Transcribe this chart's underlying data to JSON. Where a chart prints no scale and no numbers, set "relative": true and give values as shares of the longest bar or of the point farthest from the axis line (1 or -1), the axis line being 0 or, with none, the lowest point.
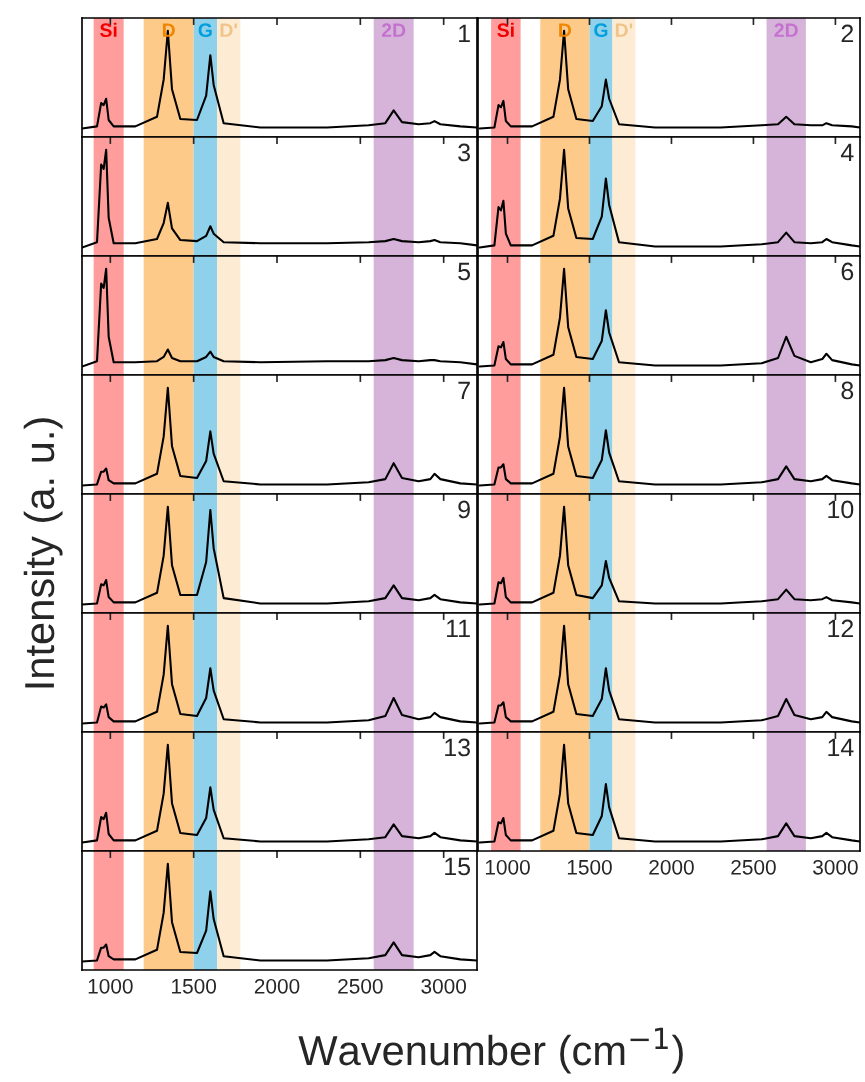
{
  "chart_data": [
    {
      "type": "line",
      "relative": true,
      "title": "1",
      "xlim": [
        830,
        3200
      ],
      "xticks": [
        1000,
        1500,
        2000,
        2500,
        3000
      ],
      "tick_labels": false,
      "x": [
        830,
        920,
        945,
        960,
        975,
        990,
        1020,
        1150,
        1280,
        1320,
        1345,
        1370,
        1420,
        1520,
        1575,
        1600,
        1620,
        1680,
        1900,
        2300,
        2550,
        2650,
        2700,
        2750,
        2850,
        2920,
        2945,
        2980,
        3100,
        3200
      ],
      "series": [
        {
          "color": "#000000",
          "values": [
            0.08,
            0.1,
            0.32,
            0.3,
            0.36,
            0.16,
            0.1,
            0.1,
            0.19,
            0.54,
            1,
            0.45,
            0.17,
            0.16,
            0.39,
            0.77,
            0.49,
            0.13,
            0.09,
            0.09,
            0.11,
            0.13,
            0.25,
            0.14,
            0.12,
            0.13,
            0.15,
            0.12,
            0.1,
            0.09
          ]
        }
      ],
      "bands": [
        {
          "axis": "x",
          "from": 900,
          "to": 1080,
          "label": "Si",
          "color": "#ff9d9d"
        },
        {
          "axis": "x",
          "from": 1200,
          "to": 1500,
          "label": "D",
          "color": "#fdca8a"
        },
        {
          "axis": "x",
          "from": 1500,
          "to": 1640,
          "label": "G",
          "color": "#8fd0ea"
        },
        {
          "axis": "x",
          "from": 1640,
          "to": 1780,
          "label": "D'",
          "color": "#fdebd3"
        },
        {
          "axis": "x",
          "from": 2580,
          "to": 2820,
          "label": "2D",
          "color": "#d6b4da"
        }
      ]
    },
    {
      "type": "line",
      "relative": true,
      "title": "2",
      "xlim": [
        820,
        3150
      ],
      "xticks": [
        1000,
        1500,
        2000,
        2500,
        3000
      ],
      "tick_labels": false,
      "x": [
        830,
        920,
        945,
        960,
        975,
        990,
        1020,
        1150,
        1280,
        1320,
        1345,
        1370,
        1420,
        1520,
        1575,
        1600,
        1620,
        1680,
        1900,
        2300,
        2550,
        2650,
        2700,
        2750,
        2850,
        2920,
        2945,
        2980,
        3100,
        3150
      ],
      "series": [
        {
          "color": "#000000",
          "values": [
            0.08,
            0.09,
            0.3,
            0.28,
            0.34,
            0.15,
            0.1,
            0.1,
            0.19,
            0.54,
            1,
            0.45,
            0.17,
            0.15,
            0.29,
            0.54,
            0.36,
            0.12,
            0.09,
            0.09,
            0.11,
            0.12,
            0.19,
            0.12,
            0.11,
            0.11,
            0.13,
            0.11,
            0.1,
            0.09
          ]
        }
      ],
      "bands": [
        {
          "axis": "x",
          "from": 900,
          "to": 1080,
          "label": "Si",
          "color": "#ff9d9d"
        },
        {
          "axis": "x",
          "from": 1200,
          "to": 1500,
          "label": "D",
          "color": "#fdca8a"
        },
        {
          "axis": "x",
          "from": 1500,
          "to": 1640,
          "label": "G",
          "color": "#8fd0ea"
        },
        {
          "axis": "x",
          "from": 1640,
          "to": 1780,
          "label": "D'",
          "color": "#fdebd3"
        },
        {
          "axis": "x",
          "from": 2580,
          "to": 2820,
          "label": "2D",
          "color": "#d6b4da"
        }
      ]
    },
    {
      "type": "line",
      "relative": true,
      "title": "3",
      "xlim": [
        830,
        3200
      ],
      "xticks": [
        1000,
        1500,
        2000,
        2500,
        3000
      ],
      "tick_labels": false,
      "x": [
        830,
        920,
        945,
        960,
        975,
        990,
        1020,
        1150,
        1280,
        1320,
        1345,
        1370,
        1420,
        1520,
        1575,
        1600,
        1620,
        1680,
        1900,
        2300,
        2550,
        2650,
        2700,
        2750,
        2850,
        2920,
        2945,
        2980,
        3100,
        3200
      ],
      "series": [
        {
          "color": "#000000",
          "values": [
            0.08,
            0.13,
            0.86,
            0.82,
            1,
            0.36,
            0.12,
            0.12,
            0.16,
            0.31,
            0.5,
            0.26,
            0.15,
            0.14,
            0.19,
            0.28,
            0.21,
            0.13,
            0.12,
            0.12,
            0.13,
            0.14,
            0.16,
            0.14,
            0.13,
            0.14,
            0.15,
            0.13,
            0.12,
            0.1
          ]
        }
      ],
      "bands": [
        {
          "axis": "x",
          "from": 900,
          "to": 1080,
          "color": "#ff9d9d"
        },
        {
          "axis": "x",
          "from": 1200,
          "to": 1500,
          "color": "#fdca8a"
        },
        {
          "axis": "x",
          "from": 1500,
          "to": 1640,
          "color": "#8fd0ea"
        },
        {
          "axis": "x",
          "from": 1640,
          "to": 1780,
          "color": "#fdebd3"
        },
        {
          "axis": "x",
          "from": 2580,
          "to": 2820,
          "color": "#d6b4da"
        }
      ]
    },
    {
      "type": "line",
      "relative": true,
      "title": "4",
      "xlim": [
        820,
        3150
      ],
      "xticks": [
        1000,
        1500,
        2000,
        2500,
        3000
      ],
      "tick_labels": false,
      "x": [
        830,
        920,
        945,
        960,
        975,
        990,
        1020,
        1150,
        1280,
        1320,
        1345,
        1370,
        1420,
        1520,
        1575,
        1600,
        1620,
        1680,
        1900,
        2300,
        2550,
        2650,
        2700,
        2750,
        2850,
        2920,
        2945,
        2980,
        3100,
        3150
      ],
      "series": [
        {
          "color": "#000000",
          "values": [
            0.08,
            0.1,
            0.46,
            0.43,
            0.52,
            0.21,
            0.1,
            0.1,
            0.19,
            0.54,
            1,
            0.45,
            0.17,
            0.16,
            0.37,
            0.73,
            0.48,
            0.13,
            0.09,
            0.09,
            0.11,
            0.13,
            0.22,
            0.13,
            0.12,
            0.13,
            0.16,
            0.13,
            0.1,
            0.09
          ]
        }
      ],
      "bands": [
        {
          "axis": "x",
          "from": 900,
          "to": 1080,
          "color": "#ff9d9d"
        },
        {
          "axis": "x",
          "from": 1200,
          "to": 1500,
          "color": "#fdca8a"
        },
        {
          "axis": "x",
          "from": 1500,
          "to": 1640,
          "color": "#8fd0ea"
        },
        {
          "axis": "x",
          "from": 1640,
          "to": 1780,
          "color": "#fdebd3"
        },
        {
          "axis": "x",
          "from": 2580,
          "to": 2820,
          "color": "#d6b4da"
        }
      ]
    },
    {
      "type": "line",
      "relative": true,
      "title": "5",
      "xlim": [
        830,
        3200
      ],
      "xticks": [
        1000,
        1500,
        2000,
        2500,
        3000
      ],
      "tick_labels": false,
      "x": [
        830,
        920,
        945,
        960,
        975,
        990,
        1020,
        1150,
        1280,
        1320,
        1345,
        1370,
        1420,
        1520,
        1575,
        1600,
        1620,
        1680,
        1900,
        2300,
        2550,
        2650,
        2700,
        2750,
        2850,
        2920,
        2945,
        2980,
        3100,
        3200
      ],
      "series": [
        {
          "color": "#000000",
          "values": [
            0.08,
            0.13,
            0.86,
            0.82,
            1,
            0.36,
            0.12,
            0.12,
            0.13,
            0.17,
            0.24,
            0.16,
            0.13,
            0.13,
            0.17,
            0.22,
            0.17,
            0.13,
            0.12,
            0.13,
            0.13,
            0.14,
            0.16,
            0.14,
            0.13,
            0.14,
            0.14,
            0.13,
            0.12,
            0.1
          ]
        }
      ],
      "bands": [
        {
          "axis": "x",
          "from": 900,
          "to": 1080,
          "color": "#ff9d9d"
        },
        {
          "axis": "x",
          "from": 1200,
          "to": 1500,
          "color": "#fdca8a"
        },
        {
          "axis": "x",
          "from": 1500,
          "to": 1640,
          "color": "#8fd0ea"
        },
        {
          "axis": "x",
          "from": 1640,
          "to": 1780,
          "color": "#fdebd3"
        },
        {
          "axis": "x",
          "from": 2580,
          "to": 2820,
          "color": "#d6b4da"
        }
      ]
    },
    {
      "type": "line",
      "relative": true,
      "title": "6",
      "xlim": [
        820,
        3150
      ],
      "xticks": [
        1000,
        1500,
        2000,
        2500,
        3000
      ],
      "tick_labels": false,
      "x": [
        830,
        920,
        945,
        960,
        975,
        990,
        1020,
        1150,
        1280,
        1320,
        1345,
        1370,
        1420,
        1520,
        1575,
        1600,
        1620,
        1680,
        1900,
        2300,
        2550,
        2650,
        2700,
        2750,
        2850,
        2920,
        2945,
        2980,
        3100,
        3150
      ],
      "series": [
        {
          "color": "#000000",
          "values": [
            0.08,
            0.09,
            0.27,
            0.26,
            0.31,
            0.15,
            0.1,
            0.1,
            0.19,
            0.54,
            1,
            0.45,
            0.17,
            0.15,
            0.32,
            0.61,
            0.4,
            0.12,
            0.09,
            0.09,
            0.11,
            0.16,
            0.36,
            0.18,
            0.12,
            0.15,
            0.2,
            0.14,
            0.1,
            0.09
          ]
        }
      ],
      "bands": [
        {
          "axis": "x",
          "from": 900,
          "to": 1080,
          "color": "#ff9d9d"
        },
        {
          "axis": "x",
          "from": 1200,
          "to": 1500,
          "color": "#fdca8a"
        },
        {
          "axis": "x",
          "from": 1500,
          "to": 1640,
          "color": "#8fd0ea"
        },
        {
          "axis": "x",
          "from": 1640,
          "to": 1780,
          "color": "#fdebd3"
        },
        {
          "axis": "x",
          "from": 2580,
          "to": 2820,
          "color": "#d6b4da"
        }
      ]
    },
    {
      "type": "line",
      "relative": true,
      "title": "7",
      "xlim": [
        830,
        3200
      ],
      "xticks": [
        1000,
        1500,
        2000,
        2500,
        3000
      ],
      "tick_labels": false,
      "x": [
        830,
        920,
        945,
        960,
        975,
        990,
        1020,
        1150,
        1280,
        1320,
        1345,
        1370,
        1420,
        1520,
        1575,
        1600,
        1620,
        1680,
        1900,
        2300,
        2550,
        2650,
        2700,
        2750,
        2850,
        2920,
        2945,
        2980,
        3100,
        3200
      ],
      "series": [
        {
          "color": "#000000",
          "values": [
            0.08,
            0.09,
            0.21,
            0.21,
            0.24,
            0.13,
            0.1,
            0.1,
            0.19,
            0.54,
            1,
            0.45,
            0.17,
            0.15,
            0.31,
            0.59,
            0.38,
            0.12,
            0.09,
            0.09,
            0.11,
            0.14,
            0.29,
            0.15,
            0.12,
            0.14,
            0.19,
            0.14,
            0.1,
            0.09
          ]
        }
      ],
      "bands": [
        {
          "axis": "x",
          "from": 900,
          "to": 1080,
          "color": "#ff9d9d"
        },
        {
          "axis": "x",
          "from": 1200,
          "to": 1500,
          "color": "#fdca8a"
        },
        {
          "axis": "x",
          "from": 1500,
          "to": 1640,
          "color": "#8fd0ea"
        },
        {
          "axis": "x",
          "from": 1640,
          "to": 1780,
          "color": "#fdebd3"
        },
        {
          "axis": "x",
          "from": 2580,
          "to": 2820,
          "color": "#d6b4da"
        }
      ]
    },
    {
      "type": "line",
      "relative": true,
      "title": "8",
      "xlim": [
        820,
        3150
      ],
      "xticks": [
        1000,
        1500,
        2000,
        2500,
        3000
      ],
      "tick_labels": false,
      "x": [
        830,
        920,
        945,
        960,
        975,
        990,
        1020,
        1150,
        1280,
        1320,
        1345,
        1370,
        1420,
        1520,
        1575,
        1600,
        1620,
        1680,
        1900,
        2300,
        2550,
        2650,
        2700,
        2750,
        2850,
        2920,
        2945,
        2980,
        3100,
        3150
      ],
      "series": [
        {
          "color": "#000000",
          "values": [
            0.08,
            0.09,
            0.25,
            0.25,
            0.28,
            0.14,
            0.1,
            0.1,
            0.19,
            0.54,
            1,
            0.45,
            0.17,
            0.15,
            0.32,
            0.6,
            0.39,
            0.12,
            0.09,
            0.09,
            0.11,
            0.14,
            0.26,
            0.14,
            0.12,
            0.14,
            0.17,
            0.13,
            0.1,
            0.09
          ]
        }
      ],
      "bands": [
        {
          "axis": "x",
          "from": 900,
          "to": 1080,
          "color": "#ff9d9d"
        },
        {
          "axis": "x",
          "from": 1200,
          "to": 1500,
          "color": "#fdca8a"
        },
        {
          "axis": "x",
          "from": 1500,
          "to": 1640,
          "color": "#8fd0ea"
        },
        {
          "axis": "x",
          "from": 1640,
          "to": 1780,
          "color": "#fdebd3"
        },
        {
          "axis": "x",
          "from": 2580,
          "to": 2820,
          "color": "#d6b4da"
        }
      ]
    },
    {
      "type": "line",
      "relative": true,
      "title": "9",
      "ylabel": "Intensity (a. u.)",
      "xlim": [
        830,
        3200
      ],
      "xticks": [
        1000,
        1500,
        2000,
        2500,
        3000
      ],
      "tick_labels": false,
      "x": [
        830,
        920,
        945,
        960,
        975,
        990,
        1020,
        1150,
        1280,
        1320,
        1345,
        1370,
        1420,
        1520,
        1575,
        1600,
        1620,
        1680,
        1900,
        2300,
        2550,
        2650,
        2700,
        2750,
        2850,
        2920,
        2945,
        2980,
        3100,
        3200
      ],
      "series": [
        {
          "color": "#000000",
          "values": [
            0.08,
            0.09,
            0.27,
            0.26,
            0.31,
            0.15,
            0.1,
            0.1,
            0.19,
            0.54,
            1,
            0.45,
            0.17,
            0.17,
            0.48,
            0.97,
            0.61,
            0.14,
            0.09,
            0.09,
            0.11,
            0.14,
            0.26,
            0.14,
            0.12,
            0.14,
            0.17,
            0.13,
            0.1,
            0.09
          ]
        }
      ],
      "bands": [
        {
          "axis": "x",
          "from": 900,
          "to": 1080,
          "color": "#ff9d9d"
        },
        {
          "axis": "x",
          "from": 1200,
          "to": 1500,
          "color": "#fdca8a"
        },
        {
          "axis": "x",
          "from": 1500,
          "to": 1640,
          "color": "#8fd0ea"
        },
        {
          "axis": "x",
          "from": 1640,
          "to": 1780,
          "color": "#fdebd3"
        },
        {
          "axis": "x",
          "from": 2580,
          "to": 2820,
          "color": "#d6b4da"
        }
      ]
    },
    {
      "type": "line",
      "relative": true,
      "title": "10",
      "xlim": [
        820,
        3150
      ],
      "xticks": [
        1000,
        1500,
        2000,
        2500,
        3000
      ],
      "tick_labels": false,
      "x": [
        830,
        920,
        945,
        960,
        975,
        990,
        1020,
        1150,
        1280,
        1320,
        1345,
        1370,
        1420,
        1520,
        1575,
        1600,
        1620,
        1680,
        1900,
        2300,
        2550,
        2650,
        2700,
        2750,
        2850,
        2920,
        2945,
        2980,
        3100,
        3150
      ],
      "series": [
        {
          "color": "#000000",
          "values": [
            0.08,
            0.09,
            0.29,
            0.28,
            0.33,
            0.15,
            0.1,
            0.1,
            0.19,
            0.54,
            1,
            0.45,
            0.17,
            0.14,
            0.26,
            0.49,
            0.33,
            0.11,
            0.09,
            0.09,
            0.11,
            0.13,
            0.22,
            0.13,
            0.12,
            0.13,
            0.15,
            0.12,
            0.1,
            0.09
          ]
        }
      ],
      "bands": [
        {
          "axis": "x",
          "from": 900,
          "to": 1080,
          "color": "#ff9d9d"
        },
        {
          "axis": "x",
          "from": 1200,
          "to": 1500,
          "color": "#fdca8a"
        },
        {
          "axis": "x",
          "from": 1500,
          "to": 1640,
          "color": "#8fd0ea"
        },
        {
          "axis": "x",
          "from": 1640,
          "to": 1780,
          "color": "#fdebd3"
        },
        {
          "axis": "x",
          "from": 2580,
          "to": 2820,
          "color": "#d6b4da"
        }
      ]
    },
    {
      "type": "line",
      "relative": true,
      "title": "11",
      "xlim": [
        830,
        3200
      ],
      "xticks": [
        1000,
        1500,
        2000,
        2500,
        3000
      ],
      "tick_labels": false,
      "x": [
        830,
        920,
        945,
        960,
        975,
        990,
        1020,
        1150,
        1280,
        1320,
        1345,
        1370,
        1420,
        1520,
        1575,
        1600,
        1620,
        1680,
        1900,
        2300,
        2550,
        2650,
        2700,
        2750,
        2850,
        2920,
        2945,
        2980,
        3100,
        3200
      ],
      "series": [
        {
          "color": "#000000",
          "values": [
            0.08,
            0.09,
            0.24,
            0.23,
            0.26,
            0.14,
            0.1,
            0.1,
            0.19,
            0.54,
            1,
            0.45,
            0.17,
            0.15,
            0.32,
            0.6,
            0.39,
            0.12,
            0.09,
            0.09,
            0.11,
            0.15,
            0.32,
            0.16,
            0.12,
            0.14,
            0.18,
            0.14,
            0.1,
            0.09
          ]
        }
      ],
      "bands": [
        {
          "axis": "x",
          "from": 900,
          "to": 1080,
          "color": "#ff9d9d"
        },
        {
          "axis": "x",
          "from": 1200,
          "to": 1500,
          "color": "#fdca8a"
        },
        {
          "axis": "x",
          "from": 1500,
          "to": 1640,
          "color": "#8fd0ea"
        },
        {
          "axis": "x",
          "from": 1640,
          "to": 1780,
          "color": "#fdebd3"
        },
        {
          "axis": "x",
          "from": 2580,
          "to": 2820,
          "color": "#d6b4da"
        }
      ]
    },
    {
      "type": "line",
      "relative": true,
      "title": "12",
      "xlim": [
        820,
        3150
      ],
      "xticks": [
        1000,
        1500,
        2000,
        2500,
        3000
      ],
      "tick_labels": false,
      "x": [
        830,
        920,
        945,
        960,
        975,
        990,
        1020,
        1150,
        1280,
        1320,
        1345,
        1370,
        1420,
        1520,
        1575,
        1600,
        1620,
        1680,
        1900,
        2300,
        2550,
        2650,
        2700,
        2750,
        2850,
        2920,
        2945,
        2980,
        3100,
        3150
      ],
      "series": [
        {
          "color": "#000000",
          "values": [
            0.08,
            0.09,
            0.25,
            0.25,
            0.28,
            0.14,
            0.1,
            0.1,
            0.19,
            0.54,
            1,
            0.45,
            0.17,
            0.15,
            0.31,
            0.6,
            0.39,
            0.12,
            0.09,
            0.09,
            0.11,
            0.15,
            0.31,
            0.16,
            0.12,
            0.14,
            0.19,
            0.14,
            0.1,
            0.09
          ]
        }
      ],
      "bands": [
        {
          "axis": "x",
          "from": 900,
          "to": 1080,
          "color": "#ff9d9d"
        },
        {
          "axis": "x",
          "from": 1200,
          "to": 1500,
          "color": "#fdca8a"
        },
        {
          "axis": "x",
          "from": 1500,
          "to": 1640,
          "color": "#8fd0ea"
        },
        {
          "axis": "x",
          "from": 1640,
          "to": 1780,
          "color": "#fdebd3"
        },
        {
          "axis": "x",
          "from": 2580,
          "to": 2820,
          "color": "#d6b4da"
        }
      ]
    },
    {
      "type": "line",
      "relative": true,
      "title": "13",
      "xlim": [
        830,
        3200
      ],
      "xticks": [
        1000,
        1500,
        2000,
        2500,
        3000
      ],
      "tick_labels": false,
      "x": [
        830,
        920,
        945,
        960,
        975,
        990,
        1020,
        1150,
        1280,
        1320,
        1345,
        1370,
        1420,
        1520,
        1575,
        1600,
        1620,
        1680,
        1900,
        2300,
        2550,
        2650,
        2700,
        2750,
        2850,
        2920,
        2945,
        2980,
        3100,
        3200
      ],
      "series": [
        {
          "color": "#000000",
          "values": [
            0.08,
            0.1,
            0.32,
            0.3,
            0.36,
            0.16,
            0.1,
            0.1,
            0.19,
            0.54,
            1,
            0.45,
            0.17,
            0.15,
            0.31,
            0.6,
            0.39,
            0.12,
            0.09,
            0.09,
            0.11,
            0.13,
            0.25,
            0.14,
            0.12,
            0.14,
            0.17,
            0.13,
            0.1,
            0.09
          ]
        }
      ],
      "bands": [
        {
          "axis": "x",
          "from": 900,
          "to": 1080,
          "color": "#ff9d9d"
        },
        {
          "axis": "x",
          "from": 1200,
          "to": 1500,
          "color": "#fdca8a"
        },
        {
          "axis": "x",
          "from": 1500,
          "to": 1640,
          "color": "#8fd0ea"
        },
        {
          "axis": "x",
          "from": 1640,
          "to": 1780,
          "color": "#fdebd3"
        },
        {
          "axis": "x",
          "from": 2580,
          "to": 2820,
          "color": "#d6b4da"
        }
      ]
    },
    {
      "type": "line",
      "relative": true,
      "title": "14",
      "xlim": [
        820,
        3150
      ],
      "xticks": [
        1000,
        1500,
        2000,
        2500,
        3000
      ],
      "tick_labels": "x",
      "x": [
        830,
        920,
        945,
        960,
        975,
        990,
        1020,
        1150,
        1280,
        1320,
        1345,
        1370,
        1420,
        1520,
        1575,
        1600,
        1620,
        1680,
        1900,
        2300,
        2550,
        2650,
        2700,
        2750,
        2850,
        2920,
        2945,
        2980,
        3100,
        3150
      ],
      "series": [
        {
          "color": "#000000",
          "values": [
            0.08,
            0.09,
            0.27,
            0.26,
            0.31,
            0.15,
            0.1,
            0.1,
            0.19,
            0.54,
            1,
            0.45,
            0.17,
            0.15,
            0.33,
            0.63,
            0.41,
            0.12,
            0.09,
            0.09,
            0.11,
            0.14,
            0.26,
            0.14,
            0.12,
            0.14,
            0.17,
            0.13,
            0.1,
            0.09
          ]
        }
      ],
      "bands": [
        {
          "axis": "x",
          "from": 900,
          "to": 1080,
          "color": "#ff9d9d"
        },
        {
          "axis": "x",
          "from": 1200,
          "to": 1500,
          "color": "#fdca8a"
        },
        {
          "axis": "x",
          "from": 1500,
          "to": 1640,
          "color": "#8fd0ea"
        },
        {
          "axis": "x",
          "from": 1640,
          "to": 1780,
          "color": "#fdebd3"
        },
        {
          "axis": "x",
          "from": 2580,
          "to": 2820,
          "color": "#d6b4da"
        }
      ]
    },
    {
      "type": "line",
      "relative": true,
      "title": "15",
      "xlabel": "Wavenumber (cm$^{−1}$)",
      "xlim": [
        830,
        3200
      ],
      "xticks": [
        1000,
        1500,
        2000,
        2500,
        3000
      ],
      "tick_labels": "x",
      "x": [
        830,
        920,
        945,
        960,
        975,
        990,
        1020,
        1150,
        1280,
        1320,
        1345,
        1370,
        1420,
        1520,
        1575,
        1600,
        1620,
        1680,
        1900,
        2300,
        2550,
        2650,
        2700,
        2750,
        2850,
        2920,
        2945,
        2980,
        3100,
        3200
      ],
      "series": [
        {
          "color": "#000000",
          "values": [
            0.08,
            0.09,
            0.21,
            0.21,
            0.24,
            0.13,
            0.1,
            0.1,
            0.19,
            0.54,
            1,
            0.45,
            0.17,
            0.16,
            0.37,
            0.74,
            0.48,
            0.13,
            0.09,
            0.09,
            0.11,
            0.14,
            0.26,
            0.14,
            0.12,
            0.14,
            0.17,
            0.13,
            0.1,
            0.09
          ]
        }
      ],
      "bands": [
        {
          "axis": "x",
          "from": 900,
          "to": 1080,
          "color": "#ff9d9d"
        },
        {
          "axis": "x",
          "from": 1200,
          "to": 1500,
          "color": "#fdca8a"
        },
        {
          "axis": "x",
          "from": 1500,
          "to": 1640,
          "color": "#8fd0ea"
        },
        {
          "axis": "x",
          "from": 1640,
          "to": 1780,
          "color": "#fdebd3"
        },
        {
          "axis": "x",
          "from": 2580,
          "to": 2820,
          "color": "#d6b4da"
        }
      ]
    }
  ]
}
